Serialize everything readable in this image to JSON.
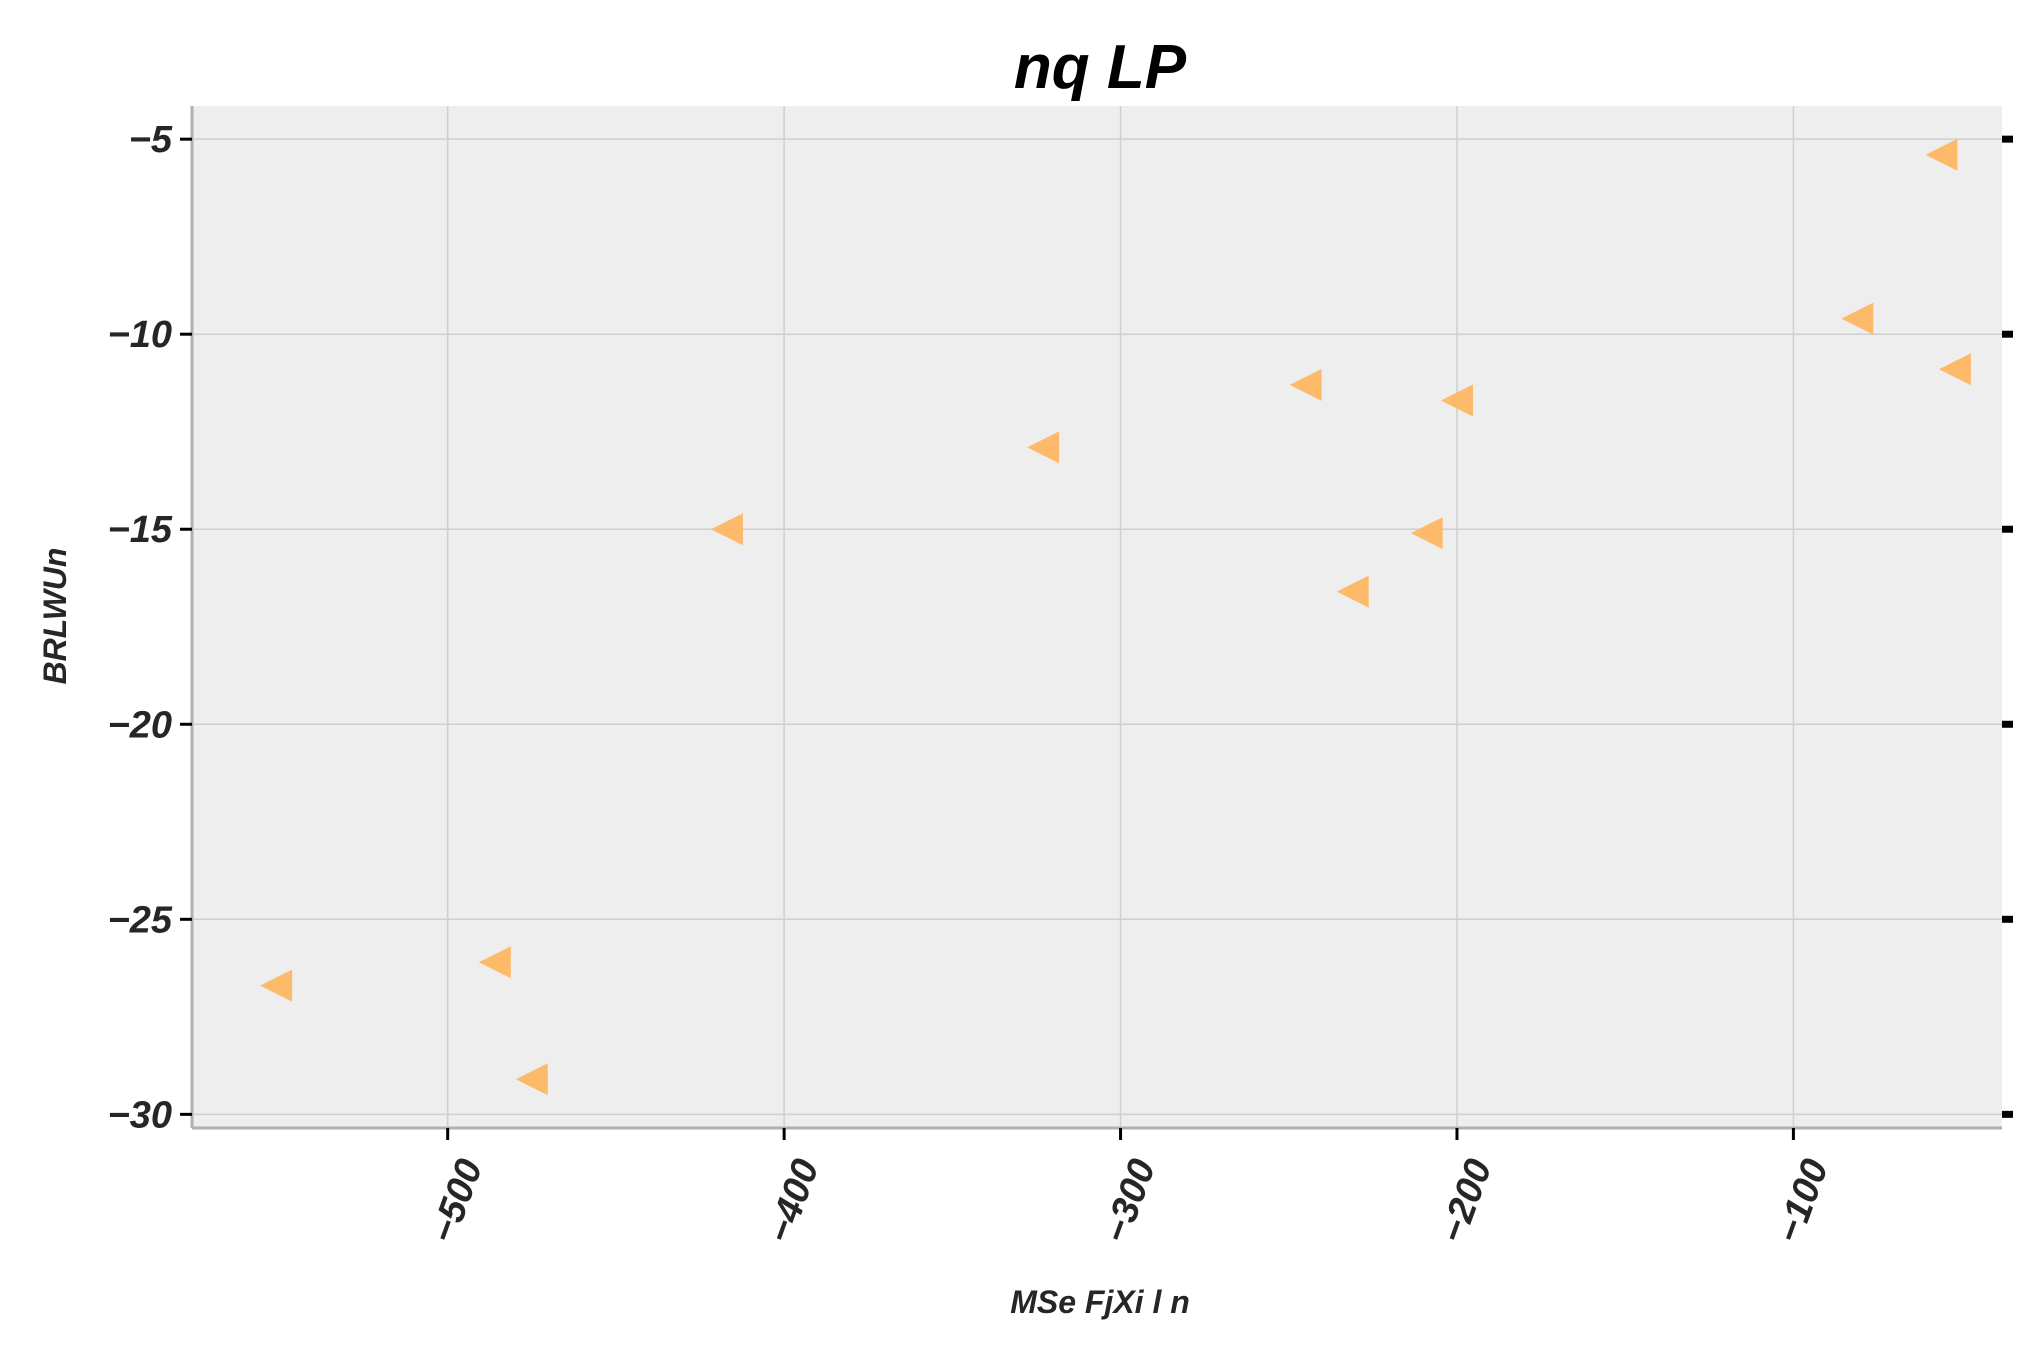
{
  "chart_data": {
    "type": "scatter",
    "title": "nq LP",
    "xlabel": "MSe  FjXi l  n",
    "ylabel": "BRLWUn",
    "xlim": [
      -576,
      -38
    ],
    "ylim": [
      -30.35,
      -4.15
    ],
    "xticks": [
      -500,
      -400,
      -300,
      -200,
      -100
    ],
    "yticks": [
      -5,
      -10,
      -15,
      -20,
      -25,
      -30
    ],
    "grid": true,
    "marker": "triangle-left",
    "color": "#FDBA6B",
    "background": "#EEEEEE",
    "points": [
      {
        "x": -551,
        "y": -26.7
      },
      {
        "x": -486,
        "y": -26.1
      },
      {
        "x": -475,
        "y": -29.1
      },
      {
        "x": -417,
        "y": -15.0
      },
      {
        "x": -323,
        "y": -12.9
      },
      {
        "x": -245,
        "y": -11.3
      },
      {
        "x": -231,
        "y": -16.6
      },
      {
        "x": -209,
        "y": -15.1
      },
      {
        "x": -200,
        "y": -11.7
      },
      {
        "x": -81,
        "y": -9.6
      },
      {
        "x": -56,
        "y": -5.4
      },
      {
        "x": -52,
        "y": -10.9
      }
    ]
  }
}
